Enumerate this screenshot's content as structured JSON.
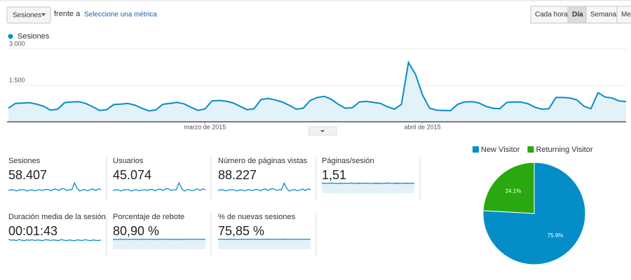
{
  "toolbar": {
    "metric_select": "Sesiones",
    "versus": "frente a",
    "compare_link": "Seleccione una métrica",
    "granularity": [
      "Cada hora",
      "Día",
      "Semana",
      "Mes"
    ],
    "selected": 1
  },
  "chart_data": [
    {
      "type": "line",
      "legend": "top-left",
      "grid": true,
      "series": [
        {
          "name": "Sesiones",
          "color": "#058dc7",
          "fill": "#e3f2f9",
          "values": [
            560,
            760,
            770,
            790,
            730,
            640,
            480,
            520,
            790,
            820,
            830,
            760,
            620,
            470,
            500,
            710,
            730,
            760,
            690,
            560,
            450,
            490,
            720,
            760,
            800,
            740,
            600,
            470,
            530,
            860,
            880,
            850,
            780,
            640,
            500,
            540,
            920,
            960,
            900,
            820,
            680,
            520,
            560,
            880,
            1000,
            1050,
            930,
            720,
            560,
            580,
            820,
            840,
            800,
            760,
            620,
            520,
            720,
            2450,
            1950,
            1100,
            560,
            480,
            470,
            460,
            720,
            820,
            830,
            780,
            640,
            560,
            540,
            800,
            820,
            810,
            750,
            600,
            520,
            540,
            1000,
            1000,
            980,
            900,
            640,
            540,
            1200,
            1020,
            980,
            860,
            830
          ]
        }
      ],
      "xlim": [
        0,
        88
      ],
      "xticks": [
        {
          "value": 28,
          "label": "marzo de 2015"
        },
        {
          "value": 59,
          "label": "abril de 2015"
        }
      ],
      "ylim": [
        0,
        3000
      ],
      "yticks": [
        {
          "value": 3000,
          "label": "3.000"
        },
        {
          "value": 1500,
          "label": "1.500"
        }
      ]
    },
    {
      "type": "pie",
      "legend": "top",
      "categories": [
        "New Visitor",
        "Returning Visitor"
      ],
      "values": [
        75.9,
        24.1
      ],
      "value_labels": [
        "75.9%",
        "24.1%"
      ],
      "colors": [
        "#058dc7",
        "#2aa80f"
      ]
    }
  ],
  "metrics": [
    {
      "label": "Sesiones",
      "value": "58.407",
      "fill": false,
      "ylim": [
        0,
        2600
      ],
      "sparkline": [
        650,
        800,
        780,
        520,
        760,
        820,
        800,
        500,
        720,
        760,
        560,
        740,
        800,
        610,
        860,
        880,
        560,
        900,
        950,
        600,
        1000,
        1050,
        620,
        820,
        790,
        2400,
        1100,
        480,
        800,
        820,
        560,
        790,
        980,
        620,
        1000,
        830
      ]
    },
    {
      "label": "Usuarios",
      "value": "45.074",
      "fill": false,
      "ylim": [
        0,
        2000
      ],
      "sparkline": [
        500,
        620,
        600,
        400,
        590,
        630,
        620,
        390,
        560,
        590,
        430,
        570,
        620,
        470,
        660,
        680,
        430,
        690,
        730,
        460,
        770,
        810,
        480,
        630,
        610,
        1850,
        850,
        370,
        620,
        630,
        430,
        610,
        760,
        480,
        770,
        640
      ]
    },
    {
      "label": "Número de páginas vistas",
      "value": "88.227",
      "fill": false,
      "ylim": [
        0,
        3900
      ],
      "sparkline": [
        980,
        1200,
        1170,
        780,
        1140,
        1230,
        1200,
        750,
        1080,
        1140,
        840,
        1110,
        1200,
        910,
        1290,
        1320,
        840,
        1350,
        1420,
        900,
        1500,
        1570,
        930,
        1230,
        1180,
        3500,
        1650,
        720,
        1200,
        1230,
        840,
        1180,
        1470,
        930,
        1500,
        1240
      ]
    },
    {
      "label": "Páginas/sesión",
      "value": "1,51",
      "fill": true,
      "ylim": [
        0,
        1.7
      ],
      "sparkline": [
        1.52,
        1.5,
        1.49,
        1.53,
        1.51,
        1.5,
        1.48,
        1.52,
        1.5,
        1.51,
        1.49,
        1.55,
        1.5,
        1.49,
        1.52,
        1.5,
        1.51,
        1.53,
        1.5,
        1.49,
        1.51,
        1.52,
        1.5,
        1.48,
        1.51,
        1.55,
        1.5,
        1.49,
        1.52,
        1.51,
        1.5,
        1.5,
        1.52,
        1.49,
        1.51,
        1.5
      ]
    },
    {
      "label": "Duración media de la sesión",
      "value": "00:01:43",
      "fill": false,
      "ylim": [
        0,
        125
      ],
      "sparkline": [
        110,
        100,
        104,
        96,
        108,
        101,
        94,
        105,
        99,
        106,
        97,
        103,
        100,
        95,
        107,
        102,
        98,
        104,
        100,
        96,
        108,
        101,
        97,
        103,
        99,
        94,
        105,
        100,
        98,
        106,
        101,
        95,
        103,
        99,
        97,
        102
      ]
    },
    {
      "label": "Porcentaje de rebote",
      "value": "80,90 %",
      "fill": true,
      "ylim": [
        0,
        92
      ],
      "sparkline": [
        81,
        80.6,
        81.2,
        80.9,
        80.7,
        81,
        81.3,
        80.8,
        80.9,
        81.1,
        80.6,
        80.9,
        81,
        80.8,
        81.2,
        80.9,
        80.7,
        81,
        80.9,
        81.1,
        80.8,
        80.9,
        81,
        80.7,
        81,
        80.5,
        80.9,
        81.2,
        80.8,
        81,
        80.9,
        80.8,
        81.1,
        80.9,
        80.7,
        81
      ]
    },
    {
      "label": "% de nuevas sesiones",
      "value": "75,85 %",
      "fill": true,
      "ylim": [
        0,
        86
      ],
      "sparkline": [
        75.9,
        75.6,
        76,
        75.8,
        75.7,
        76.1,
        75.9,
        75.8,
        75.6,
        75.9,
        76,
        75.8,
        75.9,
        75.7,
        76,
        75.8,
        75.9,
        75.6,
        75.9,
        76.1,
        75.8,
        75.7,
        75.9,
        75.8,
        76,
        76.3,
        75.8,
        75.6,
        75.9,
        75.8,
        76,
        75.9,
        75.7,
        75.9,
        75.8,
        75.9
      ]
    }
  ]
}
